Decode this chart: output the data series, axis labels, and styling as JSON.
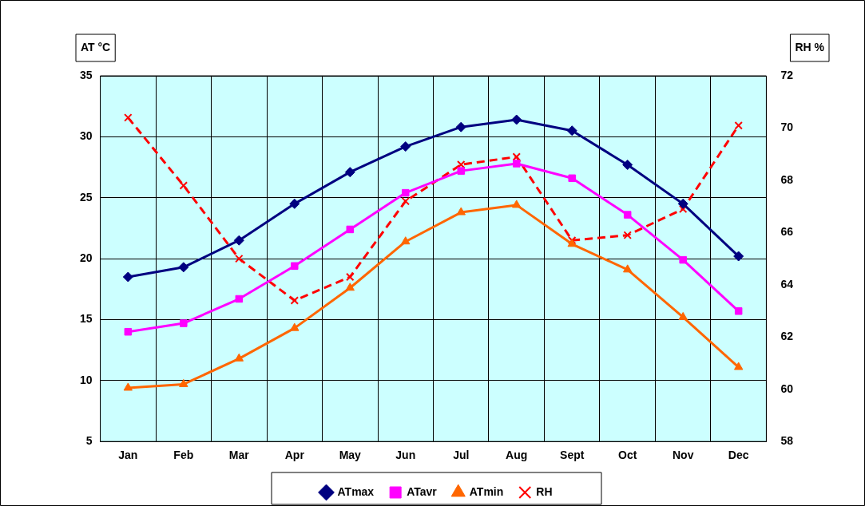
{
  "chart_data": {
    "type": "line",
    "ylabel": "AT °C",
    "y2label": "RH %",
    "categories": [
      "Jan",
      "Feb",
      "Mar",
      "Apr",
      "May",
      "Jun",
      "Jul",
      "Aug",
      "Sept",
      "Oct",
      "Nov",
      "Dec"
    ],
    "series": [
      {
        "name": "ATmax",
        "color": "#000080",
        "marker": "diamond",
        "line_style": "solid",
        "values": [
          18.5,
          19.3,
          21.5,
          24.5,
          27.1,
          29.2,
          30.8,
          31.4,
          30.5,
          27.7,
          24.5,
          20.2
        ]
      },
      {
        "name": "ATavr",
        "color": "#ff00ff",
        "marker": "square",
        "line_style": "solid",
        "values": [
          14.0,
          14.7,
          16.7,
          19.4,
          22.4,
          25.4,
          27.2,
          27.8,
          26.6,
          23.6,
          19.9,
          15.7
        ]
      },
      {
        "name": "ATmin",
        "color": "#ff6600",
        "marker": "triangle",
        "line_style": "solid",
        "values": [
          9.4,
          9.7,
          11.8,
          14.3,
          17.6,
          21.4,
          23.8,
          24.4,
          21.2,
          19.1,
          15.2,
          11.1
        ]
      },
      {
        "name": "RH",
        "color": "#ff0000",
        "marker": "cross",
        "line_style": "dashed",
        "axis": "y2",
        "values": [
          70.4,
          67.8,
          65.0,
          63.4,
          64.3,
          67.2,
          68.6,
          68.9,
          65.7,
          65.9,
          66.9,
          70.1
        ]
      }
    ],
    "ylim": [
      5,
      35
    ],
    "yticks": [
      5,
      10,
      15,
      20,
      25,
      30,
      35
    ],
    "y2lim": [
      58,
      72
    ],
    "y2ticks": [
      58,
      60,
      62,
      64,
      66,
      68,
      70,
      72
    ],
    "grid": true,
    "legend": "bottom"
  }
}
